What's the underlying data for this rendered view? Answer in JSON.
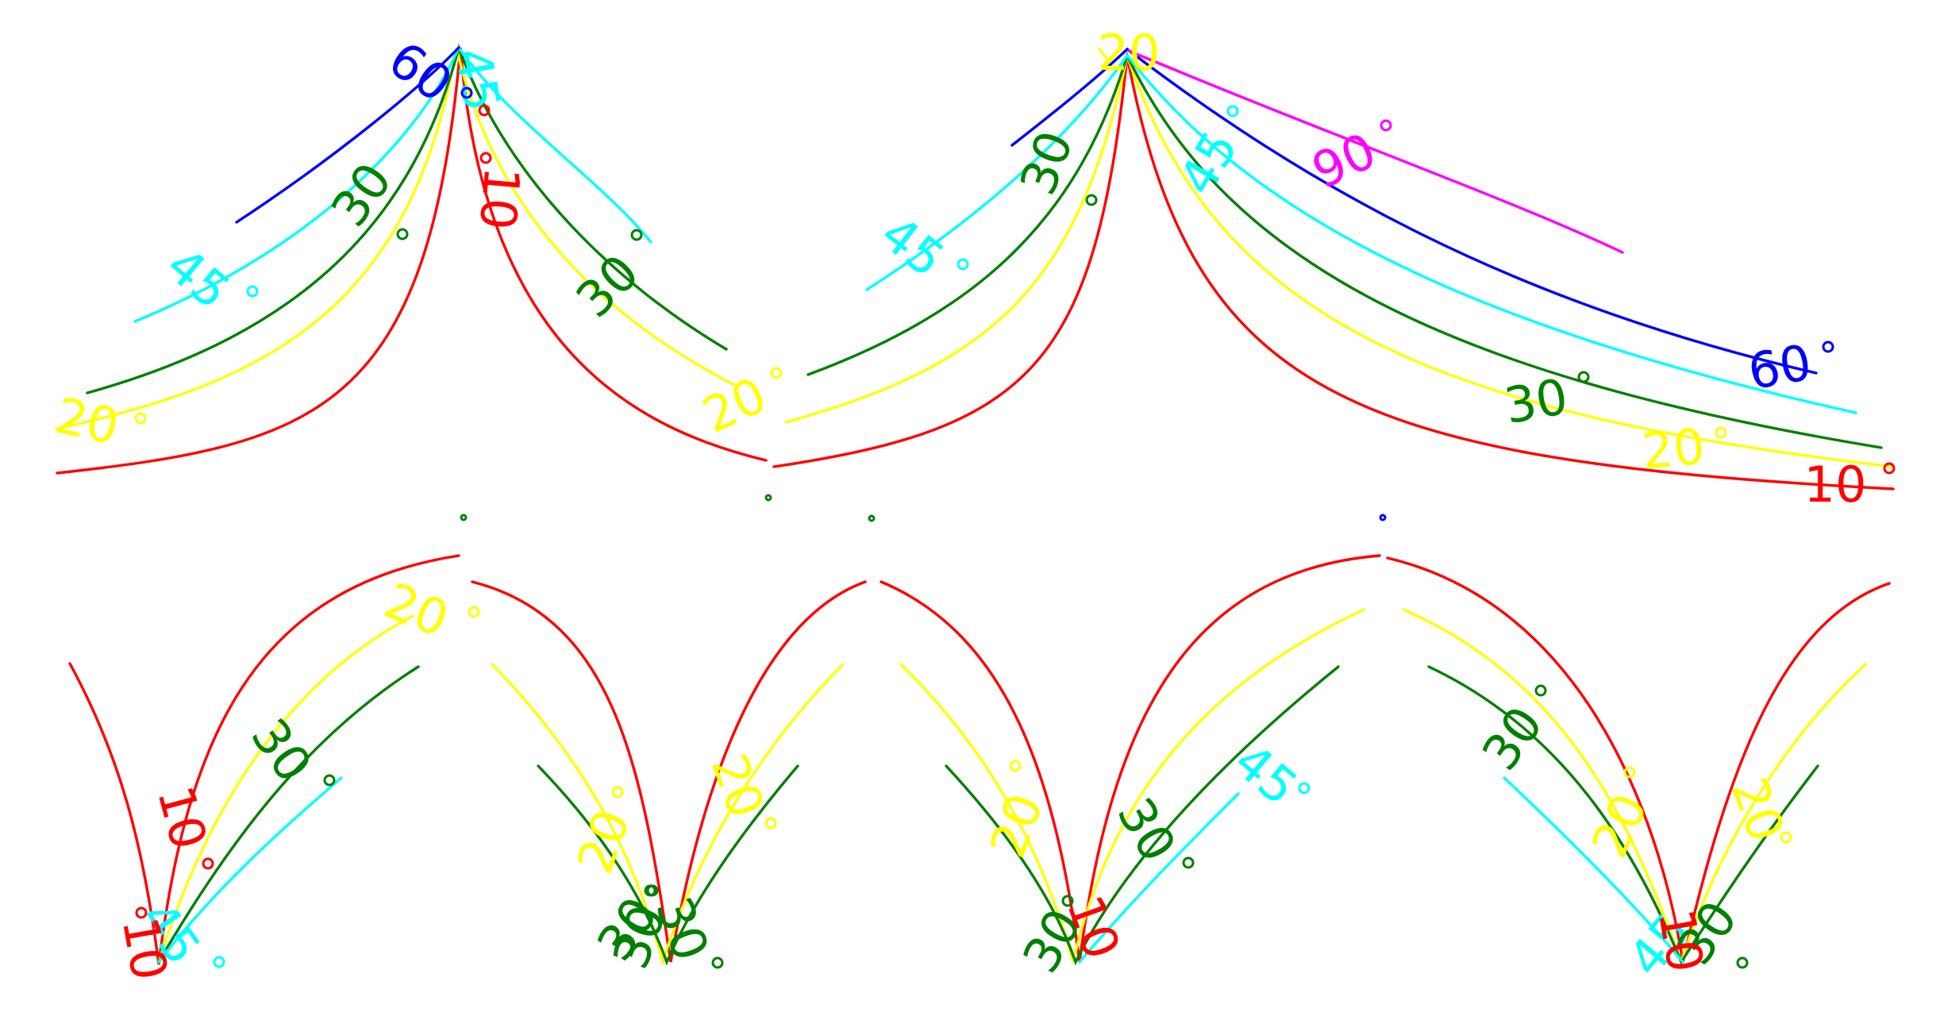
{
  "colors": {
    "c10": "#ff0000",
    "c20": "#ffff00",
    "c30": "#008000",
    "c45": "#00ffff",
    "c60": "#0000ff",
    "c90": "#ff00ff"
  },
  "labels": {
    "t10": "10",
    "t20": "20",
    "t30": "30",
    "t45": "45",
    "t60": "60",
    "t90": "90"
  }
}
